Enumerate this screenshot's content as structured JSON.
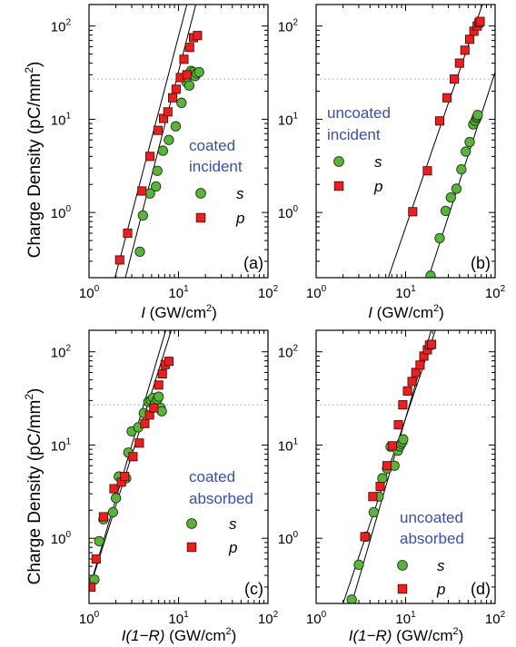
{
  "figure": {
    "ylabel_main": "Charge Density (pC/mm",
    "ylabel_sup": "2",
    "ylabel_end": ")",
    "xlabel_incident_italic": "I",
    "xlabel_incident_rest": " (GW/cm",
    "xlabel_absorbed_italic": "I(1−R)",
    "xlabel_absorbed_rest": " (GW/cm",
    "xlabel_sup": "2",
    "xlabel_end": ")",
    "legend_s": "s",
    "legend_p": "p"
  },
  "colors": {
    "s_fill": "#5ab43c",
    "p_fill": "#e82020",
    "label_blue": "#3a4fa8",
    "line": "#000000",
    "dotted": "#b0b0b0"
  },
  "chart_data": [
    {
      "type": "scatter",
      "panel_label": "(a)",
      "annotation": [
        "coated",
        "incident"
      ],
      "xscale": "log",
      "yscale": "log",
      "xlim": [
        1,
        100
      ],
      "ylim": [
        0.2,
        170
      ],
      "xticks": [
        "10",
        "10",
        "10"
      ],
      "xtick_exponents": [
        "0",
        "1",
        "2"
      ],
      "yticks": [
        "10",
        "10",
        "10"
      ],
      "ytick_exponents": [
        "0",
        "1",
        "2"
      ],
      "dotted_hline": 27,
      "legend": "center-right",
      "series": [
        {
          "name": "s",
          "marker": "circle",
          "x": [
            3.7,
            4.0,
            4.8,
            5.6,
            5.8,
            6.7,
            7.8,
            9.3,
            10.8,
            12.7,
            13.8,
            14.6,
            15.3,
            16.0,
            17.0,
            12.3,
            13.2
          ],
          "y": [
            0.38,
            0.93,
            1.6,
            1.9,
            2.8,
            4.6,
            6.0,
            8.4,
            15.0,
            30.0,
            33.0,
            32.0,
            29.0,
            31.0,
            32.0,
            25.0,
            23.0
          ],
          "fit": {
            "x": [
              2.55,
              15.6
            ],
            "y": [
              0.2,
              170
            ]
          }
        },
        {
          "name": "p",
          "marker": "square",
          "x": [
            2.2,
            2.7,
            3.9,
            4.8,
            5.9,
            6.8,
            7.6,
            8.6,
            9.4,
            10.5,
            11.5,
            12.4,
            13.3,
            14.7,
            16.3
          ],
          "y": [
            0.31,
            0.6,
            1.7,
            4.0,
            7.6,
            10.2,
            12.0,
            17.0,
            21.0,
            28.0,
            44.0,
            30.0,
            59.0,
            75.0,
            79.0
          ],
          "fit": {
            "x": [
              1.95,
              12.4
            ],
            "y": [
              0.2,
              170
            ]
          }
        }
      ]
    },
    {
      "type": "scatter",
      "panel_label": "(b)",
      "annotation": [
        "uncoated",
        "incident"
      ],
      "xscale": "log",
      "yscale": "log",
      "xlim": [
        1,
        100
      ],
      "ylim": [
        0.2,
        170
      ],
      "xticks": [
        "10",
        "10",
        "10"
      ],
      "xtick_exponents": [
        "0",
        "1",
        "2"
      ],
      "yticks": [
        "10",
        "10",
        "10"
      ],
      "ytick_exponents": [
        "0",
        "1",
        "2"
      ],
      "dotted_hline": 27,
      "legend": "center-left",
      "series": [
        {
          "name": "s",
          "marker": "circle",
          "x": [
            19.0,
            24.0,
            28.0,
            32.0,
            37.0,
            42.0,
            47.0,
            52.0,
            57.0,
            60.0,
            62.0,
            63.0,
            64.0
          ],
          "y": [
            0.21,
            0.53,
            1.04,
            1.45,
            1.8,
            2.9,
            4.5,
            5.7,
            8.8,
            9.6,
            10.3,
            10.7,
            11.1
          ],
          "fit": {
            "x": [
              18.0,
              100.0
            ],
            "y": [
              0.2,
              32.0
            ]
          }
        },
        {
          "name": "p",
          "marker": "square",
          "x": [
            12.0,
            17.5,
            24.0,
            29.0,
            35.0,
            40.0,
            46.0,
            52.0,
            58.0,
            63.0,
            66.0,
            68.0
          ],
          "y": [
            1.02,
            2.8,
            9.6,
            17.0,
            27.0,
            40.0,
            55.0,
            72.0,
            88.0,
            100.0,
            108.0,
            112.0
          ],
          "fit": {
            "x": [
              6.4,
              72.0
            ],
            "y": [
              0.2,
              170
            ]
          }
        }
      ]
    },
    {
      "type": "scatter",
      "panel_label": "(c)",
      "annotation": [
        "coated",
        "absorbed"
      ],
      "xscale": "log",
      "yscale": "log",
      "xlim": [
        1,
        100
      ],
      "ylim": [
        0.2,
        170
      ],
      "xticks": [
        "10",
        "10",
        "10"
      ],
      "xtick_exponents": [
        "0",
        "1",
        "2"
      ],
      "yticks": [
        "10",
        "10",
        "10"
      ],
      "ytick_exponents": [
        "0",
        "1",
        "2"
      ],
      "dotted_hline": 27,
      "legend": "center-right",
      "series": [
        {
          "name": "s",
          "marker": "circle",
          "x": [
            1.15,
            1.3,
            1.45,
            1.85,
            2.0,
            2.15,
            2.6,
            2.75,
            3.0,
            3.55,
            4.1,
            4.6,
            4.9,
            5.2,
            5.5,
            5.8,
            6.0,
            6.3,
            6.5
          ],
          "y": [
            0.36,
            0.93,
            1.6,
            1.9,
            2.7,
            4.6,
            4.4,
            8.3,
            14.0,
            15.5,
            22.0,
            29.0,
            30.0,
            32.0,
            28.0,
            31.0,
            33.0,
            25.0,
            23.0
          ],
          "fit": {
            "x": [
              0.9,
              7.2
            ],
            "y": [
              0.2,
              170
            ]
          }
        },
        {
          "name": "p",
          "marker": "square",
          "x": [
            1.05,
            1.2,
            1.45,
            1.9,
            2.3,
            2.5,
            3.1,
            3.65,
            4.2,
            4.75,
            5.3,
            6.0,
            6.6,
            7.1,
            7.8
          ],
          "y": [
            0.3,
            0.6,
            1.7,
            3.4,
            4.0,
            4.6,
            7.5,
            10.5,
            17.0,
            21.0,
            25.0,
            44.0,
            58.0,
            73.0,
            79.0
          ],
          "fit": {
            "x": [
              0.9,
              8.3
            ],
            "y": [
              0.2,
              170
            ]
          }
        }
      ]
    },
    {
      "type": "scatter",
      "panel_label": "(d)",
      "annotation": [
        "uncoated",
        "absorbed"
      ],
      "xscale": "log",
      "yscale": "log",
      "xlim": [
        1,
        100
      ],
      "ylim": [
        0.2,
        170
      ],
      "xticks": [
        "10",
        "10",
        "10"
      ],
      "xtick_exponents": [
        "0",
        "1",
        "2"
      ],
      "yticks": [
        "10",
        "10",
        "10"
      ],
      "ytick_exponents": [
        "0",
        "1",
        "2"
      ],
      "dotted_hline": 27,
      "legend": "center-right",
      "series": [
        {
          "name": "s",
          "marker": "circle",
          "x": [
            2.5,
            3.0,
            3.6,
            4.4,
            5.0,
            5.5,
            6.2,
            6.8,
            7.5,
            8.2,
            8.6,
            8.9,
            9.2,
            9.4
          ],
          "y": [
            0.22,
            0.52,
            1.04,
            1.9,
            2.8,
            4.4,
            5.6,
            9.6,
            6.0,
            8.7,
            9.7,
            10.3,
            10.8,
            11.5
          ],
          "fit": {
            "x": [
              2.0,
              21.5
            ],
            "y": [
              0.2,
              170
            ]
          }
        },
        {
          "name": "p",
          "marker": "square",
          "x": [
            3.5,
            4.3,
            5.2,
            6.2,
            7.1,
            8.3,
            9.3,
            10.5,
            11.8,
            13.0,
            14.5,
            16.0,
            17.5,
            18.5,
            19.5
          ],
          "y": [
            1.04,
            2.8,
            3.6,
            6.0,
            9.8,
            16.5,
            27.0,
            38.0,
            48.0,
            60.0,
            72.0,
            90.0,
            105.0,
            118.0,
            120.0
          ],
          "fit": {
            "x": [
              2.5,
              19.3
            ],
            "y": [
              0.2,
              170
            ]
          }
        }
      ]
    }
  ]
}
